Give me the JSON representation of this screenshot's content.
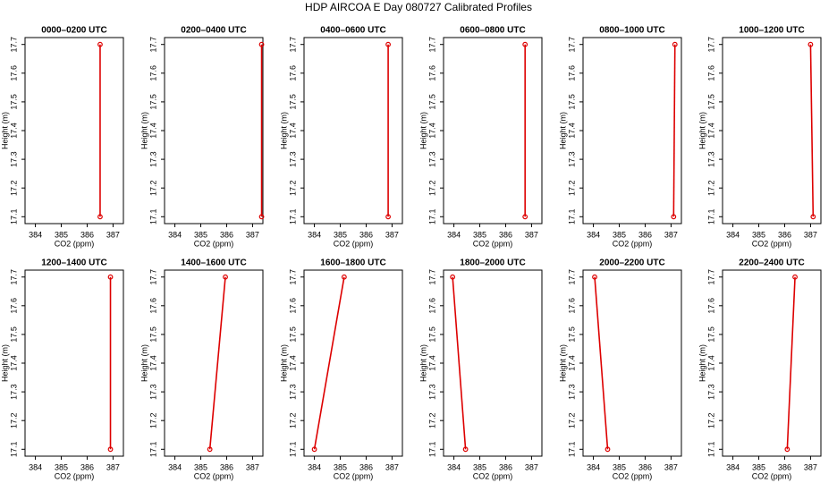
{
  "title": "HDP AIRCOA E  Day 080727  Calibrated Profiles",
  "chart_data": [
    {
      "type": "line",
      "title": "0000–0200 UTC",
      "xlabel": "CO2 (ppm)",
      "ylabel": "Height (m)",
      "color": "#dd0000",
      "x": [
        386.5,
        386.5
      ],
      "values": [
        17.1,
        17.7
      ],
      "xlim": [
        383.6,
        387.4
      ],
      "ylim": [
        17.076,
        17.724
      ],
      "xticks": [
        384,
        385,
        386,
        387
      ],
      "yticks": [
        17.1,
        17.2,
        17.3,
        17.4,
        17.5,
        17.6,
        17.7
      ]
    },
    {
      "type": "line",
      "title": "0200–0400 UTC",
      "xlabel": "CO2 (ppm)",
      "ylabel": "Height (m)",
      "color": "#dd0000",
      "x": [
        387.35,
        387.35
      ],
      "values": [
        17.1,
        17.7
      ],
      "xlim": [
        383.6,
        387.4
      ],
      "ylim": [
        17.076,
        17.724
      ],
      "xticks": [
        384,
        385,
        386,
        387
      ],
      "yticks": [
        17.1,
        17.2,
        17.3,
        17.4,
        17.5,
        17.6,
        17.7
      ]
    },
    {
      "type": "line",
      "title": "0400–0600 UTC",
      "xlabel": "CO2 (ppm)",
      "ylabel": "Height (m)",
      "color": "#dd0000",
      "x": [
        386.85,
        386.85
      ],
      "values": [
        17.1,
        17.7
      ],
      "xlim": [
        383.6,
        387.4
      ],
      "ylim": [
        17.076,
        17.724
      ],
      "xticks": [
        384,
        385,
        386,
        387
      ],
      "yticks": [
        17.1,
        17.2,
        17.3,
        17.4,
        17.5,
        17.6,
        17.7
      ]
    },
    {
      "type": "line",
      "title": "0600–0800 UTC",
      "xlabel": "CO2 (ppm)",
      "ylabel": "Height (m)",
      "color": "#dd0000",
      "x": [
        386.75,
        386.75
      ],
      "values": [
        17.1,
        17.7
      ],
      "xlim": [
        383.6,
        387.4
      ],
      "ylim": [
        17.076,
        17.724
      ],
      "xticks": [
        384,
        385,
        386,
        387
      ],
      "yticks": [
        17.1,
        17.2,
        17.3,
        17.4,
        17.5,
        17.6,
        17.7
      ]
    },
    {
      "type": "line",
      "title": "0800–1000 UTC",
      "xlabel": "CO2 (ppm)",
      "ylabel": "Height (m)",
      "color": "#dd0000",
      "x": [
        387.1,
        387.15
      ],
      "values": [
        17.1,
        17.7
      ],
      "xlim": [
        383.6,
        387.4
      ],
      "ylim": [
        17.076,
        17.724
      ],
      "xticks": [
        384,
        385,
        386,
        387
      ],
      "yticks": [
        17.1,
        17.2,
        17.3,
        17.4,
        17.5,
        17.6,
        17.7
      ]
    },
    {
      "type": "line",
      "title": "1000–1200 UTC",
      "xlabel": "CO2 (ppm)",
      "ylabel": "Height (m)",
      "color": "#dd0000",
      "x": [
        387.1,
        387.0
      ],
      "values": [
        17.1,
        17.7
      ],
      "xlim": [
        383.6,
        387.4
      ],
      "ylim": [
        17.076,
        17.724
      ],
      "xticks": [
        384,
        385,
        386,
        387
      ],
      "yticks": [
        17.1,
        17.2,
        17.3,
        17.4,
        17.5,
        17.6,
        17.7
      ]
    },
    {
      "type": "line",
      "title": "1200–1400 UTC",
      "xlabel": "CO2 (ppm)",
      "ylabel": "Height (m)",
      "color": "#dd0000",
      "x": [
        386.9,
        386.9
      ],
      "values": [
        17.1,
        17.7
      ],
      "xlim": [
        383.6,
        387.4
      ],
      "ylim": [
        17.076,
        17.724
      ],
      "xticks": [
        384,
        385,
        386,
        387
      ],
      "yticks": [
        17.1,
        17.2,
        17.3,
        17.4,
        17.5,
        17.6,
        17.7
      ]
    },
    {
      "type": "line",
      "title": "1400–1600 UTC",
      "xlabel": "CO2 (ppm)",
      "ylabel": "Height (m)",
      "color": "#dd0000",
      "x": [
        385.35,
        385.95
      ],
      "values": [
        17.1,
        17.7
      ],
      "xlim": [
        383.6,
        387.4
      ],
      "ylim": [
        17.076,
        17.724
      ],
      "xticks": [
        384,
        385,
        386,
        387
      ],
      "yticks": [
        17.1,
        17.2,
        17.3,
        17.4,
        17.5,
        17.6,
        17.7
      ]
    },
    {
      "type": "line",
      "title": "1600–1800 UTC",
      "xlabel": "CO2 (ppm)",
      "ylabel": "Height (m)",
      "color": "#dd0000",
      "x": [
        384.0,
        385.15
      ],
      "values": [
        17.1,
        17.7
      ],
      "xlim": [
        383.6,
        387.4
      ],
      "ylim": [
        17.076,
        17.724
      ],
      "xticks": [
        384,
        385,
        386,
        387
      ],
      "yticks": [
        17.1,
        17.2,
        17.3,
        17.4,
        17.5,
        17.6,
        17.7
      ]
    },
    {
      "type": "line",
      "title": "1800–2000 UTC",
      "xlabel": "CO2 (ppm)",
      "ylabel": "Height (m)",
      "color": "#dd0000",
      "x": [
        384.45,
        383.95
      ],
      "values": [
        17.1,
        17.7
      ],
      "xlim": [
        383.6,
        387.4
      ],
      "ylim": [
        17.076,
        17.724
      ],
      "xticks": [
        384,
        385,
        386,
        387
      ],
      "yticks": [
        17.1,
        17.2,
        17.3,
        17.4,
        17.5,
        17.6,
        17.7
      ]
    },
    {
      "type": "line",
      "title": "2000–2200 UTC",
      "xlabel": "CO2 (ppm)",
      "ylabel": "Height (m)",
      "color": "#dd0000",
      "x": [
        384.55,
        384.05
      ],
      "values": [
        17.1,
        17.7
      ],
      "xlim": [
        383.6,
        387.4
      ],
      "ylim": [
        17.076,
        17.724
      ],
      "xticks": [
        384,
        385,
        386,
        387
      ],
      "yticks": [
        17.1,
        17.2,
        17.3,
        17.4,
        17.5,
        17.6,
        17.7
      ]
    },
    {
      "type": "line",
      "title": "2200–2400 UTC",
      "xlabel": "CO2 (ppm)",
      "ylabel": "Height (m)",
      "color": "#dd0000",
      "x": [
        386.1,
        386.4
      ],
      "values": [
        17.1,
        17.7
      ],
      "xlim": [
        383.6,
        387.4
      ],
      "ylim": [
        17.076,
        17.724
      ],
      "xticks": [
        384,
        385,
        386,
        387
      ],
      "yticks": [
        17.1,
        17.2,
        17.3,
        17.4,
        17.5,
        17.6,
        17.7
      ]
    }
  ]
}
